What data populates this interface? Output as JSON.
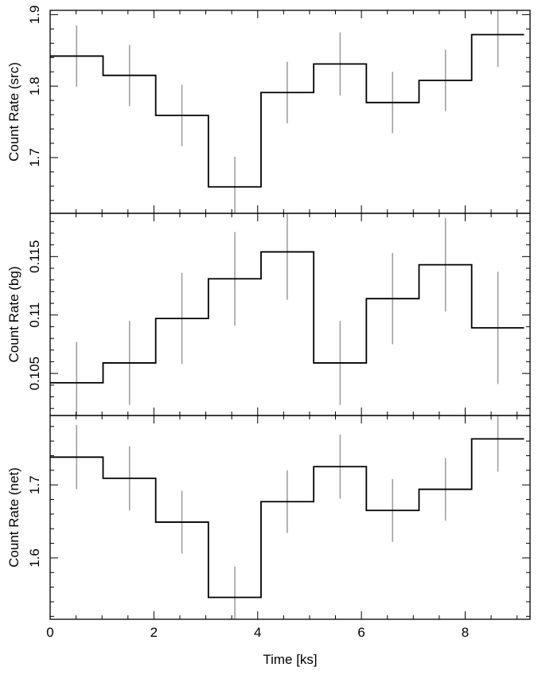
{
  "chart_data": [
    {
      "type": "line",
      "style": "step",
      "ylabel": "Count Rate (src)",
      "xlim": [
        0,
        9.25
      ],
      "ylim": [
        1.622,
        1.906
      ],
      "yticks": [
        1.7,
        1.8,
        1.9
      ],
      "ytick_labels": [
        "1.7",
        "1.8",
        "1.9"
      ],
      "series": [
        {
          "x": [
            0.51,
            1.53,
            2.54,
            3.56,
            4.57,
            5.59,
            6.6,
            7.62,
            8.63
          ],
          "values": [
            1.842,
            1.815,
            1.759,
            1.659,
            1.791,
            1.831,
            1.777,
            1.808,
            1.872
          ],
          "error": [
            0.043,
            0.043,
            0.043,
            0.042,
            0.043,
            0.044,
            0.043,
            0.043,
            0.045
          ]
        }
      ]
    },
    {
      "type": "line",
      "style": "step",
      "ylabel": "Count Rate (bg)",
      "xlim": [
        0,
        9.25
      ],
      "ylim": [
        0.1014,
        0.1187
      ],
      "yticks": [
        0.105,
        0.11,
        0.115
      ],
      "ytick_labels": [
        "0.105",
        "0.11",
        "0.115"
      ],
      "series": [
        {
          "x": [
            0.51,
            1.53,
            2.54,
            3.56,
            4.57,
            5.59,
            6.6,
            7.62,
            8.63
          ],
          "values": [
            0.1042,
            0.1059,
            0.1097,
            0.1131,
            0.1154,
            0.1059,
            0.1114,
            0.1143,
            0.1089
          ],
          "error": [
            0.0035,
            0.0036,
            0.0039,
            0.004,
            0.0041,
            0.0036,
            0.0039,
            0.004,
            0.0048
          ]
        }
      ]
    },
    {
      "type": "line",
      "style": "step",
      "ylabel": "Count Rate (net)",
      "xlabel": "Time [ks]",
      "xlim": [
        0,
        9.25
      ],
      "ylim": [
        1.516,
        1.795
      ],
      "xticks": [
        0,
        2,
        4,
        6,
        8
      ],
      "xtick_labels": [
        "0",
        "2",
        "4",
        "6",
        "8"
      ],
      "yticks": [
        1.6,
        1.7
      ],
      "ytick_labels": [
        "1.6",
        "1.7"
      ],
      "series": [
        {
          "x": [
            0.51,
            1.53,
            2.54,
            3.56,
            4.57,
            5.59,
            6.6,
            7.62,
            8.63
          ],
          "values": [
            1.738,
            1.709,
            1.649,
            1.546,
            1.677,
            1.725,
            1.665,
            1.694,
            1.763
          ],
          "error": [
            0.044,
            0.044,
            0.043,
            0.042,
            0.043,
            0.044,
            0.043,
            0.043,
            0.045
          ]
        }
      ]
    }
  ],
  "colors": {
    "step_line": "#000000",
    "error_bar": "#a0a0a0",
    "axes": "#000000"
  }
}
